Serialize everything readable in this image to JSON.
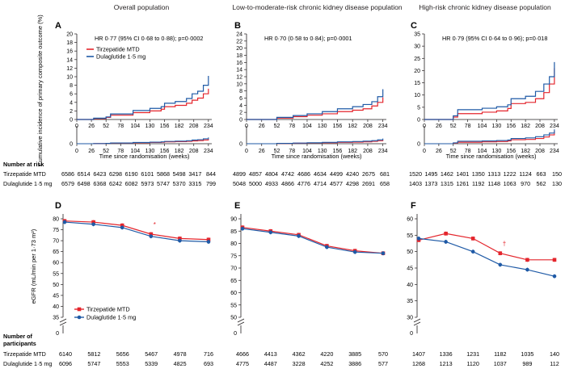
{
  "headers": [
    "Overall population",
    "Low-to-moderate-risk chronic kidney disease population",
    "High-risk chronic kidney disease population"
  ],
  "km_ylabel": "Cumulative incidence of primary composite outcome (%)",
  "km_xlabel": "Time since randomisation (weeks)",
  "egfr_ylabel": "eGFR (mL/min per 1·73 m²)",
  "colors": {
    "tirz": "#e4252c",
    "dula": "#1f5aa6"
  },
  "labels": {
    "at_risk": "Number at risk",
    "participants_l1": "Number of",
    "participants_l2": "participants",
    "tirz": "Tirzepatide MTD",
    "dula": "Dulaglutide 1·5 mg"
  },
  "chart_data": [
    {
      "panel": "A",
      "type": "line",
      "annotation": "HR 0·77 (95% CI 0·68 to 0·88); p=0·0002",
      "xticks": [
        0,
        26,
        52,
        78,
        104,
        130,
        156,
        182,
        208,
        234
      ],
      "yticks": [
        0,
        2,
        4,
        6,
        8,
        10,
        12,
        14,
        16,
        18,
        20
      ],
      "ylim": [
        0,
        20
      ],
      "xlim": [
        0,
        240
      ],
      "inset_ylim": [
        0,
        100
      ],
      "legend": [
        "Tirzepatide MTD",
        "Dulaglutide 1·5 mg"
      ],
      "series": [
        {
          "name": "Tirzepatide MTD",
          "points": [
            [
              0,
              0
            ],
            [
              30,
              0.2
            ],
            [
              52,
              0.5
            ],
            [
              60,
              1.0
            ],
            [
              100,
              1.6
            ],
            [
              130,
              2.0
            ],
            [
              150,
              2.4
            ],
            [
              156,
              3.0
            ],
            [
              175,
              3.3
            ],
            [
              195,
              3.8
            ],
            [
              205,
              4.5
            ],
            [
              215,
              5.0
            ],
            [
              225,
              6.0
            ],
            [
              234,
              7.2
            ]
          ]
        },
        {
          "name": "Dulaglutide 1·5 mg",
          "points": [
            [
              0,
              0
            ],
            [
              30,
              0.3
            ],
            [
              52,
              0.6
            ],
            [
              60,
              1.3
            ],
            [
              100,
              2.1
            ],
            [
              130,
              2.6
            ],
            [
              150,
              3.0
            ],
            [
              156,
              3.8
            ],
            [
              175,
              4.2
            ],
            [
              195,
              4.9
            ],
            [
              205,
              6.0
            ],
            [
              215,
              6.6
            ],
            [
              225,
              8.0
            ],
            [
              234,
              10.2
            ]
          ]
        }
      ],
      "risk": {
        "tirz": [
          6586,
          6514,
          6423,
          6298,
          6190,
          6101,
          5868,
          5498,
          3417,
          844
        ],
        "dula": [
          6579,
          6498,
          6368,
          6242,
          6082,
          5973,
          5747,
          5370,
          3315,
          799
        ]
      }
    },
    {
      "panel": "B",
      "type": "line",
      "annotation": "HR 0·70 (0·58 to 0·84); p=0·0001",
      "xticks": [
        0,
        26,
        52,
        78,
        104,
        130,
        156,
        182,
        208,
        234
      ],
      "yticks": [
        0,
        2,
        4,
        6,
        8,
        10,
        12,
        14,
        16,
        18,
        20,
        22,
        24
      ],
      "ylim": [
        0,
        24
      ],
      "xlim": [
        0,
        240
      ],
      "inset_ylim": [
        0,
        100
      ],
      "legend": [],
      "series": [
        {
          "name": "Tirzepatide MTD",
          "points": [
            [
              0,
              0
            ],
            [
              52,
              0.4
            ],
            [
              80,
              0.8
            ],
            [
              104,
              1.2
            ],
            [
              130,
              1.6
            ],
            [
              156,
              2.2
            ],
            [
              182,
              2.6
            ],
            [
              200,
              3.0
            ],
            [
              215,
              3.8
            ],
            [
              225,
              4.8
            ],
            [
              234,
              6.2
            ]
          ]
        },
        {
          "name": "Dulaglutide 1·5 mg",
          "points": [
            [
              0,
              0
            ],
            [
              52,
              0.6
            ],
            [
              80,
              1.1
            ],
            [
              104,
              1.6
            ],
            [
              130,
              2.2
            ],
            [
              156,
              3.0
            ],
            [
              182,
              3.6
            ],
            [
              200,
              4.2
            ],
            [
              215,
              5.0
            ],
            [
              225,
              6.4
            ],
            [
              234,
              8.5
            ]
          ]
        }
      ],
      "risk": {
        "tirz": [
          4899,
          4857,
          4804,
          4742,
          4686,
          4634,
          4499,
          4240,
          2675,
          681
        ],
        "dula": [
          5048,
          5000,
          4933,
          4866,
          4776,
          4714,
          4577,
          4298,
          2691,
          658
        ]
      }
    },
    {
      "panel": "C",
      "type": "line",
      "annotation": "HR 0·79 (95% CI 0·64 to 0·96); p=0·018",
      "xticks": [
        0,
        26,
        52,
        78,
        104,
        130,
        156,
        182,
        208,
        234
      ],
      "yticks": [
        0,
        5,
        10,
        15,
        20,
        25,
        30,
        35
      ],
      "ylim": [
        0,
        35
      ],
      "xlim": [
        0,
        240
      ],
      "inset_ylim": [
        0,
        100
      ],
      "legend": [],
      "series": [
        {
          "name": "Tirzepatide MTD",
          "points": [
            [
              0,
              0
            ],
            [
              52,
              1.0
            ],
            [
              60,
              2.4
            ],
            [
              104,
              3.0
            ],
            [
              130,
              3.5
            ],
            [
              150,
              4.5
            ],
            [
              156,
              6.5
            ],
            [
              182,
              7.0
            ],
            [
              200,
              8.5
            ],
            [
              215,
              11.0
            ],
            [
              225,
              14.5
            ],
            [
              234,
              21.0
            ]
          ]
        },
        {
          "name": "Dulaglutide 1·5 mg",
          "points": [
            [
              0,
              0
            ],
            [
              52,
              1.5
            ],
            [
              60,
              4.0
            ],
            [
              104,
              4.6
            ],
            [
              130,
              5.2
            ],
            [
              150,
              6.0
            ],
            [
              156,
              8.5
            ],
            [
              182,
              9.5
            ],
            [
              200,
              11.5
            ],
            [
              215,
              14.5
            ],
            [
              225,
              17.5
            ],
            [
              234,
              23.5
            ]
          ]
        }
      ],
      "risk": {
        "tirz": [
          1520,
          1495,
          1462,
          1401,
          1350,
          1313,
          1222,
          1124,
          663,
          150
        ],
        "dula": [
          1403,
          1373,
          1315,
          1261,
          1192,
          1148,
          1063,
          970,
          562,
          130
        ]
      }
    },
    {
      "panel": "D",
      "type": "line",
      "ylim": [
        35,
        80
      ],
      "yticks": [
        35,
        40,
        45,
        50,
        55,
        60,
        65,
        70,
        75,
        80
      ],
      "legend": [
        "Tirzepatide MTD",
        "Dulaglutide 1·5 mg"
      ],
      "marker": "*",
      "series": [
        {
          "name": "Tirzepatide MTD",
          "points": [
            [
              0,
              79
            ],
            [
              1,
              78.5
            ],
            [
              2,
              77
            ],
            [
              3,
              73
            ],
            [
              4,
              71
            ],
            [
              5,
              70.5
            ]
          ]
        },
        {
          "name": "Dulaglutide 1·5 mg",
          "points": [
            [
              0,
              78.5
            ],
            [
              1,
              77.5
            ],
            [
              2,
              76
            ],
            [
              3,
              72
            ],
            [
              4,
              70
            ],
            [
              5,
              69.5
            ]
          ]
        }
      ],
      "participants": {
        "tirz": [
          6140,
          5812,
          5656,
          5467,
          4978,
          716
        ],
        "dula": [
          6096,
          5747,
          5553,
          5339,
          4825,
          693
        ]
      }
    },
    {
      "panel": "E",
      "type": "line",
      "ylim": [
        50,
        90
      ],
      "yticks": [
        50,
        55,
        60,
        65,
        70,
        75,
        80,
        85,
        90
      ],
      "legend": [],
      "series": [
        {
          "name": "Tirzepatide MTD",
          "points": [
            [
              0,
              86.5
            ],
            [
              1,
              85
            ],
            [
              2,
              83.5
            ],
            [
              3,
              79
            ],
            [
              4,
              77
            ],
            [
              5,
              76
            ]
          ]
        },
        {
          "name": "Dulaglutide 1·5 mg",
          "points": [
            [
              0,
              86
            ],
            [
              1,
              84.5
            ],
            [
              2,
              83
            ],
            [
              3,
              78.5
            ],
            [
              4,
              76.5
            ],
            [
              5,
              76
            ]
          ]
        }
      ],
      "participants": {
        "tirz": [
          4666,
          4413,
          4362,
          4220,
          3885,
          570
        ],
        "dula": [
          4775,
          4487,
          3228,
          4252,
          3886,
          577
        ]
      }
    },
    {
      "panel": "F",
      "type": "line",
      "ylim": [
        30,
        60
      ],
      "yticks": [
        30,
        35,
        40,
        45,
        50,
        55,
        60
      ],
      "legend": [],
      "marker": "†",
      "series": [
        {
          "name": "Tirzepatide MTD",
          "points": [
            [
              0,
              53.5
            ],
            [
              1,
              55.5
            ],
            [
              2,
              54
            ],
            [
              3,
              49.5
            ],
            [
              4,
              47.5
            ],
            [
              5,
              47.5
            ]
          ]
        },
        {
          "name": "Dulaglutide 1·5 mg",
          "points": [
            [
              0,
              54
            ],
            [
              1,
              53
            ],
            [
              2,
              50
            ],
            [
              3,
              46
            ],
            [
              4,
              44.5
            ],
            [
              5,
              42.5
            ]
          ]
        }
      ],
      "participants": {
        "tirz": [
          1407,
          1336,
          1231,
          1182,
          1035,
          140
        ],
        "dula": [
          1268,
          1213,
          1120,
          1037,
          989,
          112
        ]
      }
    }
  ]
}
